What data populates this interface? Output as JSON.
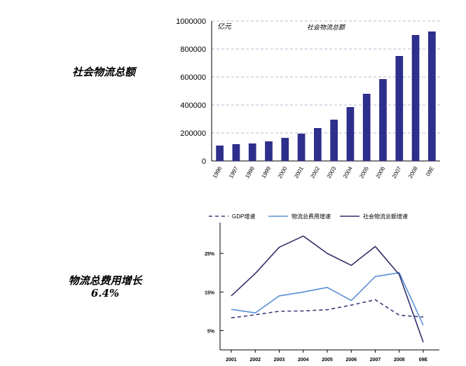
{
  "side_labels": {
    "top": "社会物流总额",
    "bottom_line1": "物流总费用增长",
    "bottom_line2": "6.4%"
  },
  "chart_data": [
    {
      "type": "bar",
      "title": "社会物流总额",
      "ylabel": "亿元",
      "categories": [
        "1996",
        "1997",
        "1998",
        "1999",
        "2000",
        "2001",
        "2002",
        "2003",
        "2004",
        "2005",
        "2006",
        "2007",
        "2008",
        "09E"
      ],
      "values": [
        110000,
        120000,
        125000,
        140000,
        165000,
        195000,
        235000,
        295000,
        385000,
        480000,
        585000,
        750000,
        900000,
        925000
      ],
      "ylim": [
        0,
        1000000
      ],
      "yticks": [
        "0",
        "200000",
        "400000",
        "600000",
        "800000",
        "1000000"
      ],
      "ytick_values": [
        0,
        200000,
        400000,
        600000,
        800000,
        1000000
      ],
      "grid": true,
      "bar_color": "#2e2e8c"
    },
    {
      "type": "line",
      "legend": [
        "GDP增速",
        "物流总费用增速",
        "社会物流总额增速"
      ],
      "legend_placement": "top",
      "categories": [
        "2001",
        "2002",
        "2003",
        "2004",
        "2005",
        "2006",
        "2007",
        "2008",
        "09E"
      ],
      "ylim": [
        0,
        33
      ],
      "yticks": [
        "5%",
        "15%",
        "25%"
      ],
      "ytick_values": [
        5,
        15,
        25
      ],
      "series": [
        {
          "name": "GDP增速",
          "style": "dashed",
          "color": "#3a3a7a",
          "values": [
            8.3,
            9.1,
            10.0,
            10.1,
            10.4,
            11.6,
            13.0,
            9.0,
            8.5
          ]
        },
        {
          "name": "物流总费用增速",
          "style": "solid",
          "color": "#5b8fd8",
          "values": [
            10.5,
            9.6,
            14.0,
            15.0,
            16.2,
            12.8,
            19.0,
            20.0,
            6.4
          ]
        },
        {
          "name": "社会物流总额增速",
          "style": "solid",
          "color": "#2e2e66",
          "values": [
            14.0,
            19.8,
            26.6,
            29.5,
            25.0,
            21.9,
            26.8,
            19.5,
            2.0
          ]
        }
      ]
    }
  ]
}
